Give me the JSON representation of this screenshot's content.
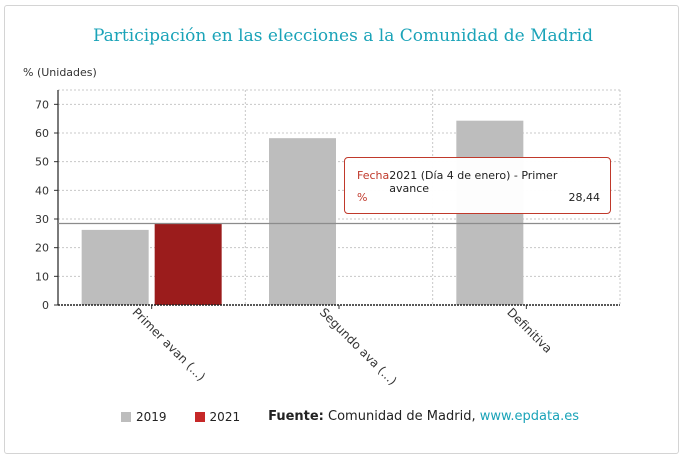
{
  "title": "Participación en las elecciones a la Comunidad de Madrid",
  "unit_label": "% (Unidades)",
  "legend": [
    {
      "label": "2019",
      "color": "#bdbdbd"
    },
    {
      "label": "2021",
      "color": "#9b1c1c"
    }
  ],
  "source": {
    "label": "Fuente:",
    "text": "Comunidad de Madrid,",
    "link": "www.epdata.es"
  },
  "tooltip": {
    "key1": "Fecha",
    "val1": "2021 (Día 4 de enero) - Primer avance",
    "key2": "%",
    "val2": "28,44"
  },
  "chart_data": {
    "type": "bar",
    "categories": [
      "Primer avan (...)",
      "Segundo ava (...)",
      "Definitiva"
    ],
    "series": [
      {
        "name": "2019",
        "color": "#bdbdbd",
        "values": [
          26.2,
          58.2,
          64.3
        ]
      },
      {
        "name": "2021",
        "color": "#9b1c1c",
        "values": [
          28.44,
          null,
          null
        ]
      }
    ],
    "ylabel": "% (Unidades)",
    "ylim": [
      0,
      75
    ],
    "yticks": [
      0,
      10,
      20,
      30,
      40,
      50,
      60,
      70
    ],
    "reference_line": 28.44,
    "grid": true
  }
}
